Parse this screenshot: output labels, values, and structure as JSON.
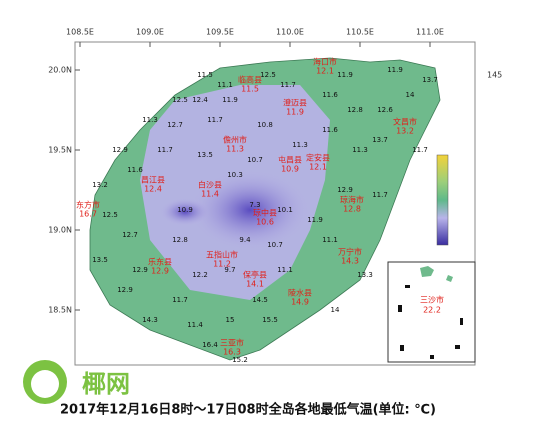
{
  "map": {
    "lon_ticks": [
      {
        "value": 108.5,
        "label": "108.5E"
      },
      {
        "value": 109.0,
        "label": "109.0E"
      },
      {
        "value": 109.5,
        "label": "109.5E"
      },
      {
        "value": 110.0,
        "label": "110.0E"
      },
      {
        "value": 110.5,
        "label": "110.5E"
      },
      {
        "value": 111.0,
        "label": "111.0E"
      }
    ],
    "lat_ticks": [
      {
        "value": 20.0,
        "label": "20.0N"
      },
      {
        "value": 19.5,
        "label": "19.5N"
      },
      {
        "value": 19.0,
        "label": "19.0N"
      },
      {
        "value": 18.5,
        "label": "18.5N"
      }
    ],
    "edge_label": "145",
    "cities": [
      {
        "name": "海口市",
        "value": 12.1
      },
      {
        "name": "临高县",
        "value": 11.5
      },
      {
        "name": "澄迈县",
        "value": 11.9
      },
      {
        "name": "文昌市",
        "value": 13.2
      },
      {
        "name": "儋州市",
        "value": 11.3
      },
      {
        "name": "定安县",
        "value": 12.1
      },
      {
        "name": "屯昌县",
        "value": 10.9
      },
      {
        "name": "琼海市",
        "value": 12.8
      },
      {
        "name": "白沙县",
        "value": 11.4
      },
      {
        "name": "昌江县",
        "value": 12.4
      },
      {
        "name": "东方市",
        "value": 16.7
      },
      {
        "name": "琼中县",
        "value": 10.6
      },
      {
        "name": "万宁市",
        "value": 14.3
      },
      {
        "name": "乐东县",
        "value": 12.9
      },
      {
        "name": "五指山市",
        "value": 11.2
      },
      {
        "name": "保亭县",
        "value": 14.1
      },
      {
        "name": "陵水县",
        "value": 14.9
      },
      {
        "name": "三亚市",
        "value": 16.3
      }
    ],
    "stations": [
      11.5,
      11.1,
      12.5,
      11.7,
      11.9,
      11.9,
      14,
      13.7,
      12.5,
      12.4,
      11.9,
      11.6,
      12.8,
      12.6,
      11.3,
      12.7,
      11.7,
      10.8,
      11.6,
      13.7,
      12.9,
      11.7,
      13.5,
      10.7,
      11.3,
      11.3,
      11.7,
      13.2,
      11.6,
      10.3,
      12.9,
      11.7,
      12.5,
      10.9,
      7.3,
      10.1,
      11.9,
      12.7,
      12.8,
      9.4,
      10.7,
      11.1,
      13.5,
      12.9,
      12.2,
      9.7,
      11.1,
      13.3,
      12.9,
      11.7,
      14.5,
      14,
      14.3,
      11.4,
      15,
      15.5,
      16.4,
      15.2
    ],
    "inset": {
      "name": "三沙市",
      "value": 22.2
    }
  },
  "logo": "椰网",
  "caption": "2017年12月16日8时～17日08时全岛各地最低气温(单位: ℃)"
}
